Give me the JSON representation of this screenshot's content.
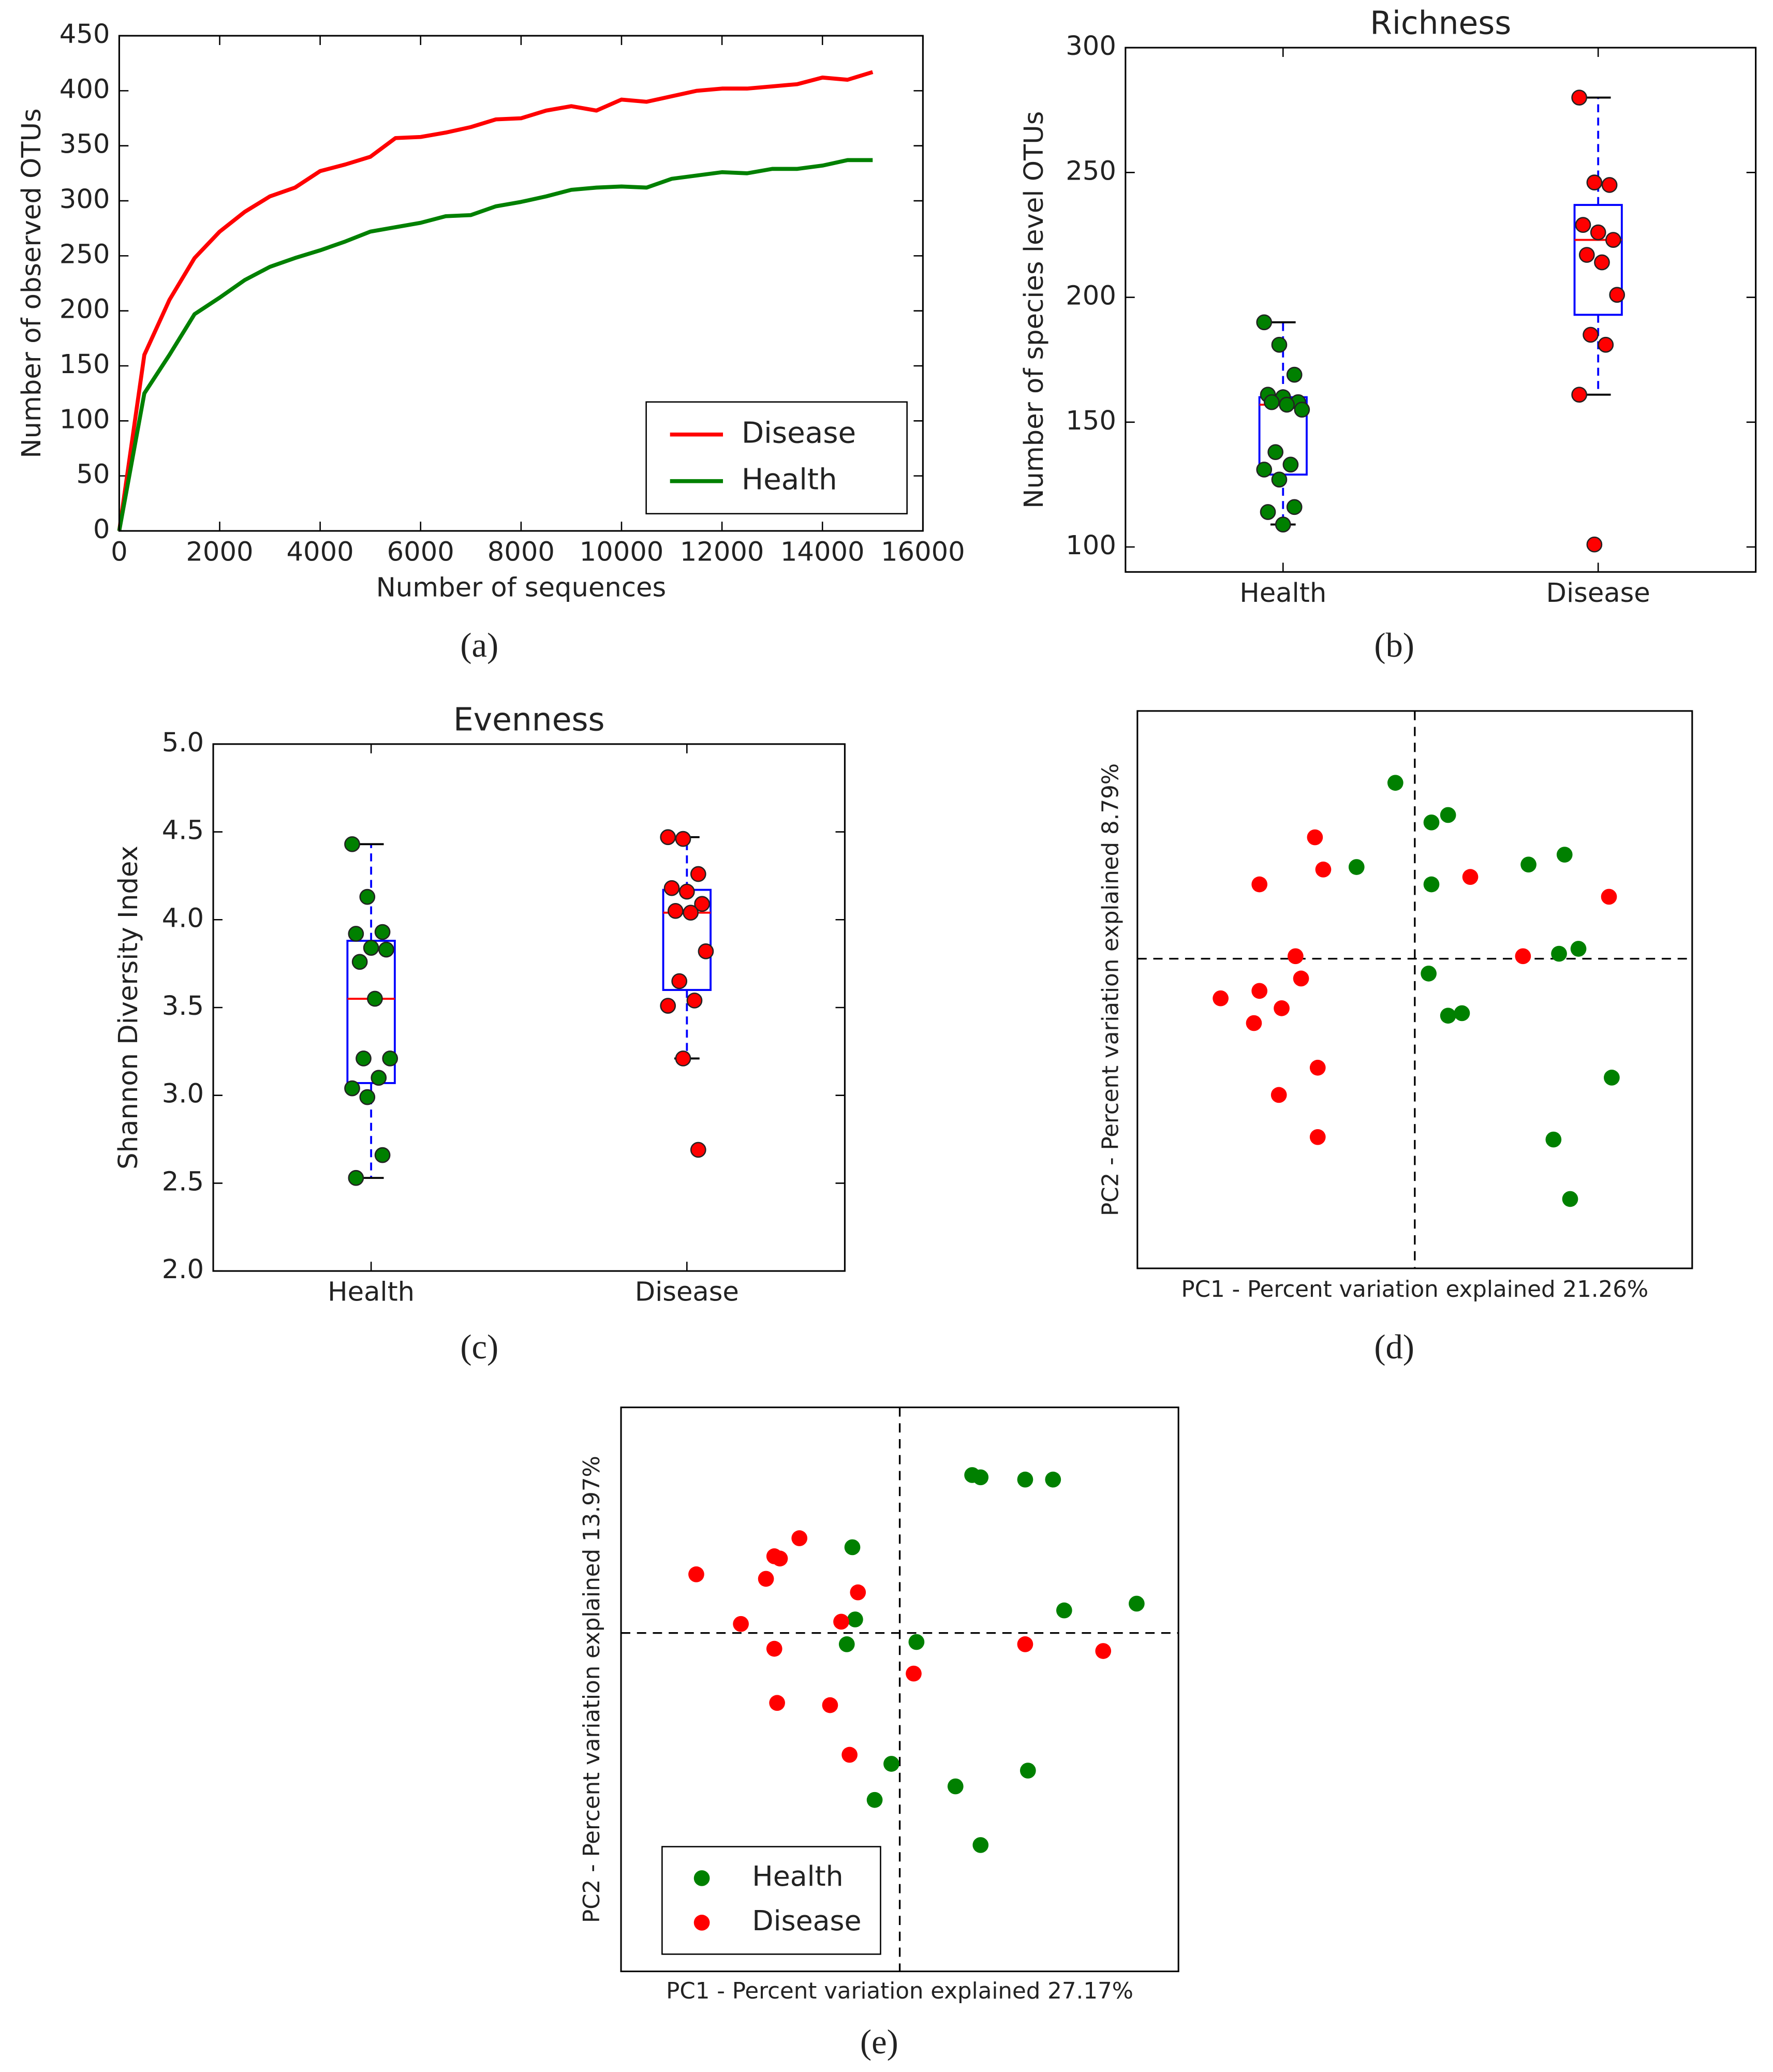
{
  "chart_data": [
    {
      "type": "line",
      "caption": "(a)",
      "x_label": "Number of sequences",
      "y_label": "Number of observed OTUs",
      "x": [
        0,
        500,
        1000,
        1500,
        2000,
        2500,
        3000,
        3500,
        4000,
        4500,
        5000,
        5500,
        6000,
        6500,
        7000,
        7500,
        8000,
        8500,
        9000,
        9500,
        10000,
        10500,
        11000,
        11500,
        12000,
        12500,
        13000,
        13500,
        14000,
        14500,
        15000
      ],
      "series": [
        {
          "name": "Disease",
          "color": "#ff0000",
          "values": [
            0,
            160,
            210,
            248,
            272,
            290,
            304,
            312,
            327,
            333,
            340,
            357,
            358,
            362,
            367,
            374,
            375,
            382,
            386,
            382,
            392,
            390,
            395,
            400,
            402,
            402,
            404,
            406,
            412,
            410,
            417
          ]
        },
        {
          "name": "Health",
          "color": "#008000",
          "values": [
            0,
            125,
            160,
            197,
            212,
            228,
            240,
            248,
            255,
            263,
            272,
            276,
            280,
            286,
            287,
            295,
            299,
            304,
            310,
            312,
            313,
            312,
            320,
            323,
            326,
            325,
            329,
            329,
            332,
            337,
            337
          ]
        }
      ],
      "xlim": [
        0,
        16000
      ],
      "xticks": [
        0,
        2000,
        4000,
        6000,
        8000,
        10000,
        12000,
        14000,
        16000
      ],
      "ylim": [
        0,
        450
      ],
      "yticks": [
        0,
        50,
        100,
        150,
        200,
        250,
        300,
        350,
        400,
        450
      ],
      "legend": "lower right"
    },
    {
      "type": "box",
      "caption": "(b)",
      "title": "Richness",
      "y_label": "Number of species level OTUs",
      "categories": [
        "Health",
        "Disease"
      ],
      "boxes": [
        {
          "whisker_low": 109,
          "q1": 129,
          "median": 157,
          "q3": 160,
          "whisker_high": 190
        },
        {
          "whisker_low": 161,
          "q1": 193,
          "median": 223,
          "q3": 237,
          "whisker_high": 280
        }
      ],
      "points": [
        [
          190,
          181,
          169,
          161,
          160,
          158,
          158,
          157,
          155,
          138,
          133,
          131,
          127,
          116,
          114,
          109
        ],
        [
          280,
          246,
          245,
          229,
          226,
          223,
          217,
          214,
          201,
          185,
          181,
          161,
          101
        ]
      ],
      "box_color": "#0000ff",
      "median_color": "#ff0000",
      "point_colors": [
        "#008000",
        "#ff0000"
      ],
      "ylim": [
        90,
        300
      ],
      "yticks": [
        100,
        150,
        200,
        250,
        300
      ]
    },
    {
      "type": "box",
      "caption": "(c)",
      "title": "Evenness",
      "y_label": "Shannon Diversity Index",
      "categories": [
        "Health",
        "Disease"
      ],
      "boxes": [
        {
          "whisker_low": 2.53,
          "q1": 3.07,
          "median": 3.55,
          "q3": 3.88,
          "whisker_high": 4.43
        },
        {
          "whisker_low": 3.21,
          "q1": 3.6,
          "median": 4.04,
          "q3": 4.17,
          "whisker_high": 4.47
        }
      ],
      "points": [
        [
          4.43,
          4.13,
          3.93,
          3.92,
          3.84,
          3.83,
          3.76,
          3.55,
          3.21,
          3.21,
          3.1,
          3.04,
          2.99,
          2.66,
          2.53
        ],
        [
          4.47,
          4.46,
          4.26,
          4.18,
          4.16,
          4.09,
          4.05,
          4.04,
          3.82,
          3.65,
          3.54,
          3.51,
          3.21,
          2.69
        ]
      ],
      "box_color": "#0000ff",
      "median_color": "#ff0000",
      "point_colors": [
        "#008000",
        "#ff0000"
      ],
      "ylim": [
        2,
        5
      ],
      "yticks": [
        {
          "value": 2,
          "label": "2.0"
        },
        2.5,
        {
          "value": 3,
          "label": "3.0"
        },
        3.5,
        {
          "value": 4,
          "label": "4.0"
        },
        4.5,
        {
          "value": 5,
          "label": "5.0"
        }
      ]
    },
    {
      "type": "scatter",
      "caption": "(d)",
      "x_label": "PC1 - Percent variation explained 21.26%",
      "y_label": "PC2 - Percent variation explained 8.79%",
      "series": [
        {
          "color": "#008000",
          "x": [
            -0.07,
            0.06,
            0.12,
            -0.21,
            0.06,
            0.41,
            0.54,
            0.52,
            0.59,
            0.05,
            0.12,
            0.17,
            0.71,
            0.5,
            0.56
          ],
          "values": [
            0.71,
            0.55,
            0.58,
            0.37,
            0.3,
            0.38,
            0.42,
            0.02,
            0.04,
            -0.06,
            -0.23,
            -0.22,
            -0.48,
            -0.73,
            -0.97
          ]
        },
        {
          "color": "#ff0000",
          "x": [
            -0.36,
            -0.56,
            -0.33,
            0.2,
            0.7,
            -0.43,
            0.39,
            -0.7,
            -0.56,
            -0.48,
            -0.41,
            -0.58,
            -0.35,
            -0.49,
            -0.35
          ],
          "values": [
            0.49,
            0.3,
            0.36,
            0.33,
            0.25,
            0.01,
            0.01,
            -0.16,
            -0.13,
            -0.2,
            -0.08,
            -0.26,
            -0.44,
            -0.55,
            -0.72
          ]
        }
      ],
      "xlim": [
        -1,
        1
      ],
      "ylim": [
        -1.25,
        1
      ]
    },
    {
      "type": "scatter",
      "caption": "(e)",
      "x_label": "PC1 - Percent variation explained 27.17%",
      "y_label": "PC2 - Percent variation explained 13.97%",
      "series": [
        {
          "name": "Health",
          "color": "#008000",
          "x": [
            0.26,
            0.29,
            0.45,
            0.55,
            -0.17,
            0.85,
            0.59,
            -0.16,
            -0.19,
            0.06,
            -0.03,
            0.46,
            -0.09,
            0.2,
            0.29
          ],
          "values": [
            0.7,
            0.69,
            0.68,
            0.68,
            0.38,
            0.13,
            0.1,
            0.06,
            -0.05,
            -0.04,
            -0.58,
            -0.61,
            -0.74,
            -0.68,
            -0.94
          ]
        },
        {
          "name": "Disease",
          "color": "#ff0000",
          "x": [
            -0.36,
            -0.45,
            -0.43,
            -0.73,
            -0.48,
            -0.15,
            -0.57,
            -0.21,
            -0.45,
            0.45,
            0.73,
            0.05,
            -0.44,
            -0.25,
            -0.18
          ],
          "values": [
            0.42,
            0.34,
            0.33,
            0.26,
            0.24,
            0.18,
            0.04,
            0.05,
            -0.07,
            -0.05,
            -0.08,
            -0.18,
            -0.31,
            -0.32,
            -0.54
          ]
        }
      ],
      "xlim": [
        -1,
        1
      ],
      "ylim": [
        -1.5,
        1
      ],
      "legend": "lower left"
    }
  ]
}
